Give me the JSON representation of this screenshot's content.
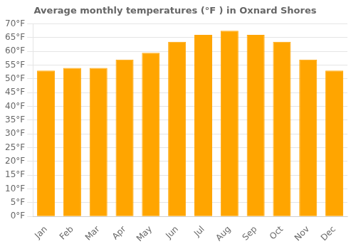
{
  "chart_data": {
    "type": "bar",
    "title": "Average monthly temperatures (°F ) in Oxnard Shores",
    "categories": [
      "Jan",
      "Feb",
      "Mar",
      "Apr",
      "May",
      "Jun",
      "Jul",
      "Aug",
      "Sep",
      "Oct",
      "Nov",
      "Dec"
    ],
    "values": [
      53,
      54,
      54,
      57,
      59.5,
      63.5,
      66,
      67.5,
      66,
      63.5,
      57,
      53
    ],
    "color": "#FFA500",
    "ylim": [
      0,
      70
    ],
    "yticks": [
      {
        "value": 0,
        "label": "0°F"
      },
      {
        "value": 5,
        "label": "5°F"
      },
      {
        "value": 10,
        "label": "10°F"
      },
      {
        "value": 15,
        "label": "15°F"
      },
      {
        "value": 20,
        "label": "20°F"
      },
      {
        "value": 25,
        "label": "25°F"
      },
      {
        "value": 30,
        "label": "30°F"
      },
      {
        "value": 35,
        "label": "35°F"
      },
      {
        "value": 40,
        "label": "40°F"
      },
      {
        "value": 45,
        "label": "45°F"
      },
      {
        "value": 50,
        "label": "50°F"
      },
      {
        "value": 55,
        "label": "55°F"
      },
      {
        "value": 60,
        "label": "60°F"
      },
      {
        "value": 65,
        "label": "65°F"
      },
      {
        "value": 70,
        "label": "70°F"
      }
    ],
    "grid": true
  }
}
